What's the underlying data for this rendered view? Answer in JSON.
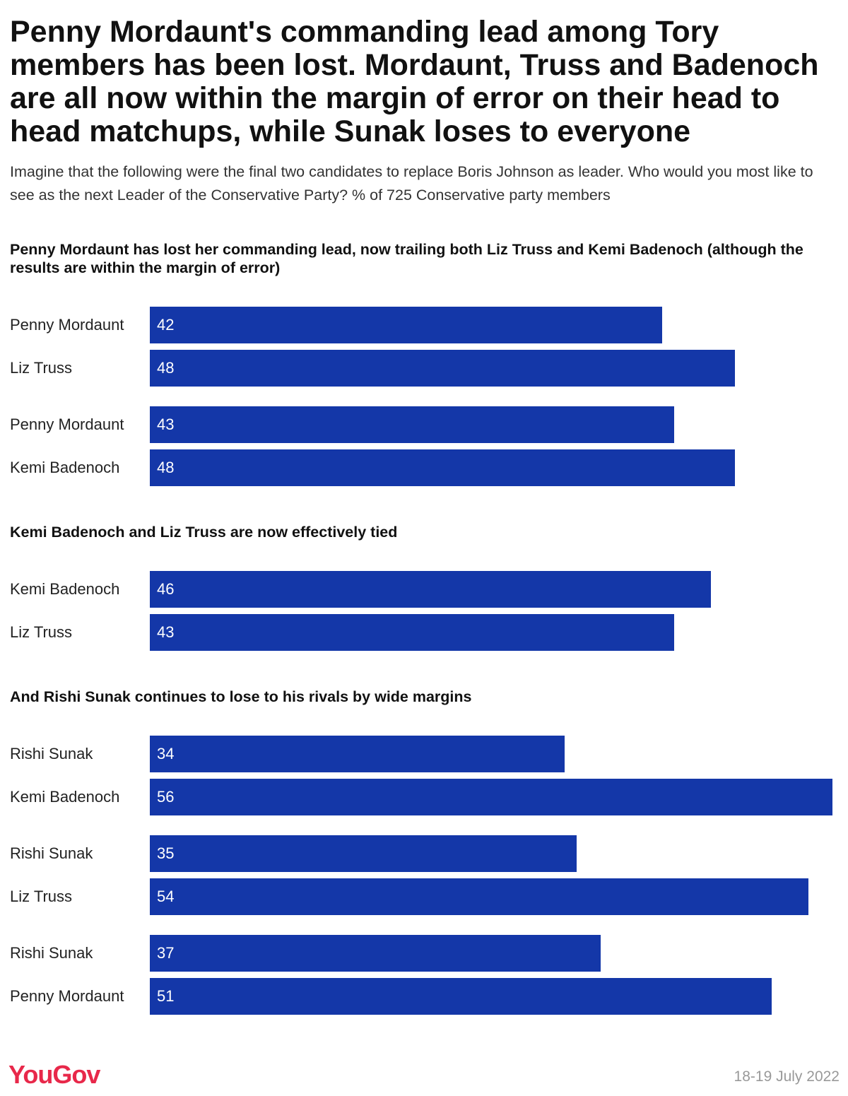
{
  "title": "Penny Mordaunt's commanding lead among Tory members has been lost. Mordaunt, Truss and Badenoch are all now within the margin of error on their head to head matchups, while Sunak loses to everyone",
  "subtitle": "Imagine that the following were the final two candidates to replace Boris Johnson as leader. Who would you most like to see as the next Leader of the Conservative Party? % of 725 Conservative party members",
  "footer": {
    "logo": "YouGov",
    "date": "18-19 July 2022"
  },
  "colors": {
    "bar": "#1437a8",
    "logo": "#e8284a"
  },
  "chart_data": {
    "type": "bar",
    "orientation": "horizontal",
    "xlim": [
      0,
      56
    ],
    "sections": [
      {
        "title": "Penny Mordaunt has lost her commanding lead, now trailing both Liz Truss and Kemi Badenoch (although the results are within the margin of error)",
        "matchups": [
          [
            {
              "name": "Penny Mordaunt",
              "value": 42
            },
            {
              "name": "Liz Truss",
              "value": 48
            }
          ],
          [
            {
              "name": "Penny Mordaunt",
              "value": 43
            },
            {
              "name": "Kemi Badenoch",
              "value": 48
            }
          ]
        ]
      },
      {
        "title": "Kemi Badenoch and Liz Truss are now effectively tied",
        "matchups": [
          [
            {
              "name": "Kemi Badenoch",
              "value": 46
            },
            {
              "name": "Liz Truss",
              "value": 43
            }
          ]
        ]
      },
      {
        "title": "And Rishi Sunak continues to lose to his rivals by wide margins",
        "matchups": [
          [
            {
              "name": "Rishi Sunak",
              "value": 34
            },
            {
              "name": "Kemi Badenoch",
              "value": 56
            }
          ],
          [
            {
              "name": "Rishi Sunak",
              "value": 35
            },
            {
              "name": "Liz Truss",
              "value": 54
            }
          ],
          [
            {
              "name": "Rishi Sunak",
              "value": 37
            },
            {
              "name": "Penny Mordaunt",
              "value": 51
            }
          ]
        ]
      }
    ]
  }
}
